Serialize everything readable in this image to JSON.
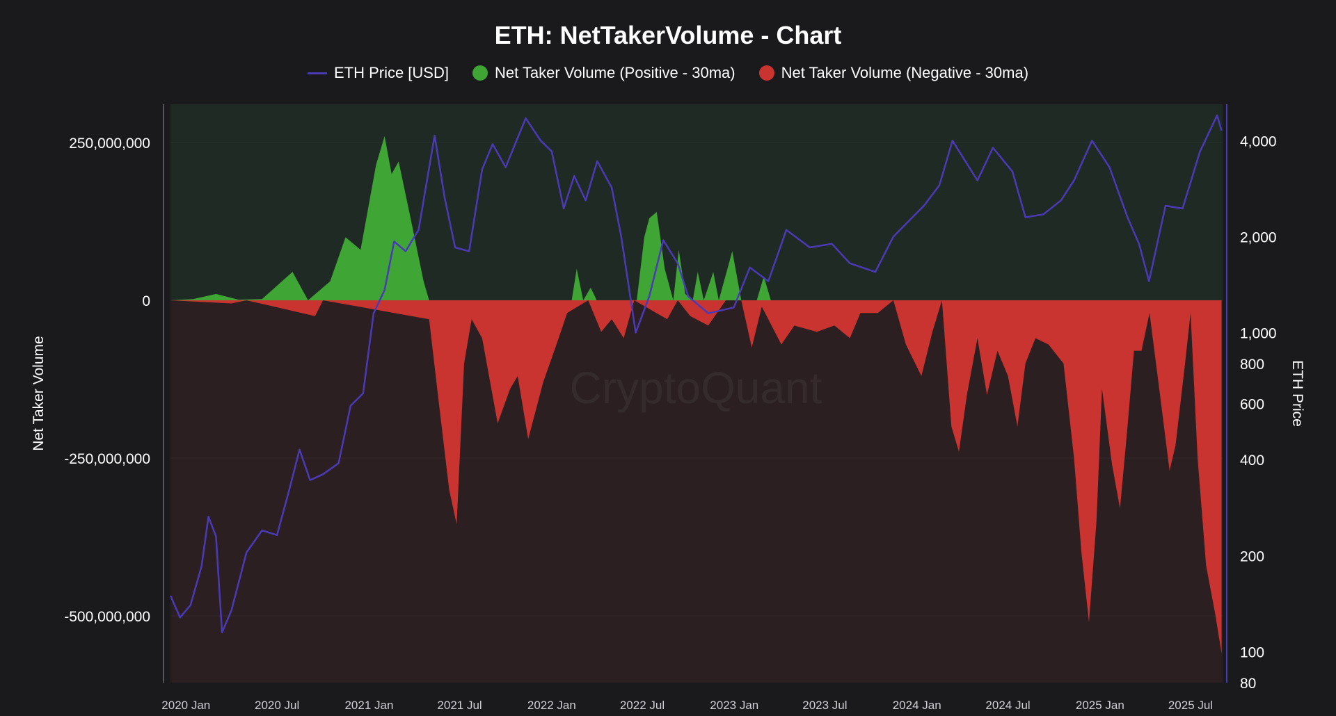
{
  "chart_data": {
    "type": "area",
    "title": "ETH: NetTakerVolume - Chart",
    "watermark": "CryptoQuant",
    "legend": [
      {
        "name": "ETH Price [USD]",
        "marker": "line",
        "color": "#4b3ab5"
      },
      {
        "name": "Net Taker Volume (Positive - 30ma)",
        "marker": "dot",
        "color": "#3fa534"
      },
      {
        "name": "Net Taker Volume (Negative - 30ma)",
        "marker": "dot",
        "color": "#c93330"
      }
    ],
    "ylabel_left": "Net Taker Volume",
    "ylabel_right": "ETH Price",
    "ylim_left": [
      -620000000,
      310000000
    ],
    "ylim_right": [
      80,
      5200
    ],
    "right_scale": "log",
    "x_tick_labels": [
      "2020 Jan",
      "2020 Jul",
      "2021 Jan",
      "2021 Jul",
      "2022 Jan",
      "2022 Jul",
      "2023 Jan",
      "2023 Jul",
      "2024 Jan",
      "2024 Jul",
      "2025 Jan",
      "2025 Jul"
    ],
    "left_ticks": [
      {
        "value": 250000000,
        "label": "250,000,000"
      },
      {
        "value": 0,
        "label": "0"
      },
      {
        "value": -250000000,
        "label": "-250,000,000"
      },
      {
        "value": -500000000,
        "label": "-500,000,000"
      }
    ],
    "right_ticks": [
      {
        "value": 4000,
        "label": "4,000"
      },
      {
        "value": 2000,
        "label": "2,000"
      },
      {
        "value": 1000,
        "label": "1,000"
      },
      {
        "value": 800,
        "label": "800"
      },
      {
        "value": 600,
        "label": "600"
      },
      {
        "value": 400,
        "label": "400"
      },
      {
        "value": 200,
        "label": "200"
      },
      {
        "value": 100,
        "label": "100"
      },
      {
        "value": 80,
        "label": "80"
      }
    ],
    "colors": {
      "background": "#1a1a1d",
      "positive_zone": "#1f2a24",
      "negative_zone": "#2b1f21",
      "price_line": "#4b3ab5",
      "positive": "#3fa534",
      "negative": "#c93330"
    },
    "series": [
      {
        "name": "ETH Price [USD]",
        "axis": "right",
        "points": [
          [
            "2019-12-01",
            150
          ],
          [
            "2019-12-20",
            128
          ],
          [
            "2020-01-10",
            140
          ],
          [
            "2020-02-01",
            185
          ],
          [
            "2020-02-15",
            265
          ],
          [
            "2020-03-01",
            230
          ],
          [
            "2020-03-13",
            115
          ],
          [
            "2020-04-01",
            135
          ],
          [
            "2020-05-01",
            205
          ],
          [
            "2020-06-01",
            240
          ],
          [
            "2020-07-01",
            232
          ],
          [
            "2020-07-25",
            320
          ],
          [
            "2020-08-15",
            430
          ],
          [
            "2020-09-05",
            345
          ],
          [
            "2020-10-01",
            360
          ],
          [
            "2020-11-01",
            390
          ],
          [
            "2020-11-25",
            590
          ],
          [
            "2020-12-20",
            645
          ],
          [
            "2021-01-10",
            1150
          ],
          [
            "2021-02-01",
            1360
          ],
          [
            "2021-02-20",
            1930
          ],
          [
            "2021-03-15",
            1800
          ],
          [
            "2021-04-10",
            2100
          ],
          [
            "2021-05-12",
            4150
          ],
          [
            "2021-06-01",
            2650
          ],
          [
            "2021-06-22",
            1850
          ],
          [
            "2021-07-20",
            1800
          ],
          [
            "2021-08-15",
            3250
          ],
          [
            "2021-09-05",
            3900
          ],
          [
            "2021-10-01",
            3300
          ],
          [
            "2021-11-10",
            4700
          ],
          [
            "2021-12-10",
            4000
          ],
          [
            "2022-01-01",
            3700
          ],
          [
            "2022-01-25",
            2450
          ],
          [
            "2022-02-15",
            3100
          ],
          [
            "2022-03-10",
            2600
          ],
          [
            "2022-04-02",
            3450
          ],
          [
            "2022-05-01",
            2850
          ],
          [
            "2022-05-20",
            2000
          ],
          [
            "2022-06-18",
            1000
          ],
          [
            "2022-07-15",
            1300
          ],
          [
            "2022-08-12",
            1950
          ],
          [
            "2022-09-10",
            1650
          ],
          [
            "2022-10-01",
            1300
          ],
          [
            "2022-11-10",
            1150
          ],
          [
            "2022-12-31",
            1200
          ],
          [
            "2023-02-01",
            1600
          ],
          [
            "2023-03-10",
            1450
          ],
          [
            "2023-04-15",
            2100
          ],
          [
            "2023-06-01",
            1850
          ],
          [
            "2023-07-15",
            1900
          ],
          [
            "2023-08-20",
            1650
          ],
          [
            "2023-10-10",
            1550
          ],
          [
            "2023-11-15",
            2000
          ],
          [
            "2024-01-15",
            2500
          ],
          [
            "2024-02-15",
            2900
          ],
          [
            "2024-03-12",
            4000
          ],
          [
            "2024-05-01",
            3000
          ],
          [
            "2024-06-01",
            3800
          ],
          [
            "2024-07-10",
            3200
          ],
          [
            "2024-08-05",
            2300
          ],
          [
            "2024-09-10",
            2350
          ],
          [
            "2024-10-15",
            2600
          ],
          [
            "2024-11-10",
            3000
          ],
          [
            "2024-12-16",
            4000
          ],
          [
            "2025-01-20",
            3300
          ],
          [
            "2025-02-25",
            2300
          ],
          [
            "2025-03-20",
            1900
          ],
          [
            "2025-04-09",
            1450
          ],
          [
            "2025-05-12",
            2500
          ],
          [
            "2025-06-15",
            2450
          ],
          [
            "2025-07-20",
            3700
          ],
          [
            "2025-08-23",
            4800
          ],
          [
            "2025-09-01",
            4300
          ]
        ]
      },
      {
        "name": "Net Taker Volume (Positive - 30ma)",
        "axis": "left",
        "points": [
          [
            "2019-12-01",
            0
          ],
          [
            "2020-01-15",
            2000000
          ],
          [
            "2020-03-01",
            10000000
          ],
          [
            "2020-04-15",
            1000000
          ],
          [
            "2020-06-01",
            2000000
          ],
          [
            "2020-08-01",
            45000000
          ],
          [
            "2020-09-01",
            0
          ],
          [
            "2020-10-15",
            30000000
          ],
          [
            "2020-11-15",
            100000000
          ],
          [
            "2020-12-15",
            80000000
          ],
          [
            "2021-01-15",
            215000000
          ],
          [
            "2021-02-01",
            260000000
          ],
          [
            "2021-02-15",
            200000000
          ],
          [
            "2021-03-01",
            220000000
          ],
          [
            "2021-03-25",
            130000000
          ],
          [
            "2021-04-20",
            30000000
          ],
          [
            "2021-05-01",
            0
          ],
          [
            "2022-02-10",
            0
          ],
          [
            "2022-02-20",
            50000000
          ],
          [
            "2022-03-05",
            0
          ],
          [
            "2022-03-20",
            20000000
          ],
          [
            "2022-04-01",
            0
          ],
          [
            "2022-06-20",
            0
          ],
          [
            "2022-07-05",
            100000000
          ],
          [
            "2022-07-15",
            130000000
          ],
          [
            "2022-07-30",
            140000000
          ],
          [
            "2022-08-15",
            50000000
          ],
          [
            "2022-09-01",
            0
          ],
          [
            "2022-09-12",
            80000000
          ],
          [
            "2022-09-25",
            10000000
          ],
          [
            "2022-10-10",
            0
          ],
          [
            "2022-10-20",
            45000000
          ],
          [
            "2022-11-01",
            0
          ],
          [
            "2022-11-20",
            45000000
          ],
          [
            "2022-12-01",
            0
          ],
          [
            "2022-12-28",
            78000000
          ],
          [
            "2023-01-15",
            0
          ],
          [
            "2023-02-15",
            0
          ],
          [
            "2023-03-01",
            38000000
          ],
          [
            "2023-03-15",
            0
          ]
        ]
      },
      {
        "name": "Net Taker Volume (Negative - 30ma)",
        "axis": "left",
        "points": [
          [
            "2019-12-01",
            0
          ],
          [
            "2020-04-01",
            -5000000
          ],
          [
            "2020-05-01",
            0
          ],
          [
            "2020-09-15",
            -25000000
          ],
          [
            "2020-10-01",
            0
          ],
          [
            "2021-05-01",
            -30000000
          ],
          [
            "2021-05-20",
            -160000000
          ],
          [
            "2021-06-10",
            -300000000
          ],
          [
            "2021-06-25",
            -355000000
          ],
          [
            "2021-07-10",
            -100000000
          ],
          [
            "2021-07-25",
            -30000000
          ],
          [
            "2021-08-15",
            -60000000
          ],
          [
            "2021-09-15",
            -195000000
          ],
          [
            "2021-10-10",
            -140000000
          ],
          [
            "2021-10-25",
            -120000000
          ],
          [
            "2021-11-15",
            -220000000
          ],
          [
            "2021-12-15",
            -130000000
          ],
          [
            "2022-01-15",
            -60000000
          ],
          [
            "2022-02-01",
            -20000000
          ],
          [
            "2022-03-15",
            0
          ],
          [
            "2022-04-10",
            -50000000
          ],
          [
            "2022-05-01",
            -30000000
          ],
          [
            "2022-05-25",
            -60000000
          ],
          [
            "2022-06-15",
            0
          ],
          [
            "2022-08-20",
            -30000000
          ],
          [
            "2022-09-10",
            0
          ],
          [
            "2022-10-05",
            -25000000
          ],
          [
            "2022-11-10",
            -40000000
          ],
          [
            "2022-12-15",
            0
          ],
          [
            "2023-01-15",
            0
          ],
          [
            "2023-02-05",
            -75000000
          ],
          [
            "2023-02-25",
            -10000000
          ],
          [
            "2023-04-05",
            -70000000
          ],
          [
            "2023-05-01",
            -40000000
          ],
          [
            "2023-06-15",
            -50000000
          ],
          [
            "2023-07-20",
            -40000000
          ],
          [
            "2023-08-20",
            -60000000
          ],
          [
            "2023-09-10",
            -20000000
          ],
          [
            "2023-10-15",
            -20000000
          ],
          [
            "2023-11-15",
            0
          ],
          [
            "2023-12-10",
            -70000000
          ],
          [
            "2024-01-10",
            -120000000
          ],
          [
            "2024-02-01",
            -50000000
          ],
          [
            "2024-02-20",
            0
          ],
          [
            "2024-03-10",
            -200000000
          ],
          [
            "2024-03-25",
            -240000000
          ],
          [
            "2024-04-10",
            -150000000
          ],
          [
            "2024-05-01",
            -60000000
          ],
          [
            "2024-05-20",
            -150000000
          ],
          [
            "2024-06-10",
            -80000000
          ],
          [
            "2024-07-01",
            -120000000
          ],
          [
            "2024-07-20",
            -200000000
          ],
          [
            "2024-08-05",
            -100000000
          ],
          [
            "2024-08-25",
            -60000000
          ],
          [
            "2024-09-20",
            -70000000
          ],
          [
            "2024-10-20",
            -100000000
          ],
          [
            "2024-11-10",
            -250000000
          ],
          [
            "2024-11-25",
            -400000000
          ],
          [
            "2024-12-10",
            -510000000
          ],
          [
            "2024-12-25",
            -350000000
          ],
          [
            "2025-01-05",
            -140000000
          ],
          [
            "2025-01-25",
            -260000000
          ],
          [
            "2025-02-10",
            -330000000
          ],
          [
            "2025-02-25",
            -200000000
          ],
          [
            "2025-03-10",
            -80000000
          ],
          [
            "2025-03-25",
            -80000000
          ],
          [
            "2025-04-10",
            -20000000
          ],
          [
            "2025-05-01",
            -150000000
          ],
          [
            "2025-05-20",
            -270000000
          ],
          [
            "2025-06-01",
            -230000000
          ],
          [
            "2025-06-20",
            -100000000
          ],
          [
            "2025-07-01",
            -20000000
          ],
          [
            "2025-07-15",
            -250000000
          ],
          [
            "2025-08-01",
            -420000000
          ],
          [
            "2025-08-20",
            -500000000
          ],
          [
            "2025-09-01",
            -560000000
          ]
        ]
      }
    ]
  }
}
